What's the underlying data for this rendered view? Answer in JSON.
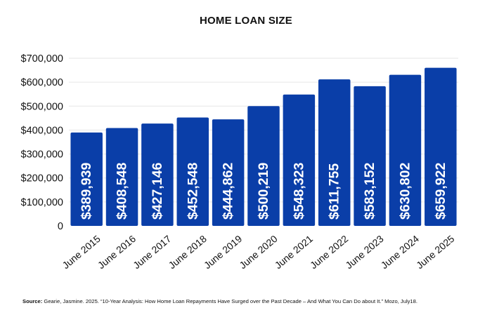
{
  "chart_data": {
    "type": "bar",
    "title": "HOME LOAN SIZE",
    "categories": [
      "June 2015",
      "June 2016",
      "June 2017",
      "June 2018",
      "June 2019",
      "June 2020",
      "June 2021",
      "June 2022",
      "June 2023",
      "June 2024",
      "June 2025"
    ],
    "values": [
      389939,
      408548,
      427146,
      452548,
      444862,
      500219,
      548323,
      611755,
      583152,
      630802,
      659922
    ],
    "value_labels": [
      "$389,939",
      "$408,548",
      "$427,146",
      "$452,548",
      "$444,862",
      "$500,219",
      "$548,323",
      "$611,755",
      "$583,152",
      "$630,802",
      "$659,922"
    ],
    "y_ticks": [
      0,
      100000,
      200000,
      300000,
      400000,
      500000,
      600000,
      700000
    ],
    "y_tick_labels": [
      "0",
      "$100,000",
      "$200,000",
      "$300,000",
      "$400,000",
      "$500,000",
      "$600,000",
      "$700,000"
    ],
    "ylim": [
      0,
      700000
    ],
    "bar_color": "#0a3ea8",
    "label_color": "#ffffff",
    "grid": true,
    "xlabel": "",
    "ylabel": ""
  },
  "source": {
    "prefix": "Source:",
    "text": "Gearie, Jasmine. 2025. “10-Year Analysis: How Home Loan Repayments Have Surged over the Past Decade – And What You Can Do about It.” Mozo, July18."
  }
}
